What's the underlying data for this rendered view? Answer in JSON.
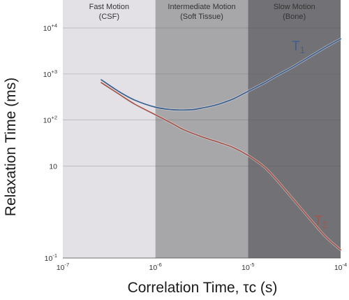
{
  "chart_data": {
    "type": "line",
    "xlabel": "Correlation Time, τc (s)",
    "ylabel": "Relaxation Time (ms)",
    "x_scale": "log",
    "y_scale": "log",
    "xlim": [
      1e-07,
      0.0001
    ],
    "ylim": [
      0.1,
      10000.0
    ],
    "grid": true,
    "x_ticks": [
      {
        "value": 1e-07,
        "base": "10",
        "exp": "-7"
      },
      {
        "value": 1e-06,
        "base": "10",
        "exp": "-6"
      },
      {
        "value": 1e-05,
        "base": "10",
        "exp": "-5"
      },
      {
        "value": 0.0001,
        "base": "10",
        "exp": "-4"
      }
    ],
    "y_ticks": [
      {
        "value": 0.1,
        "base": "10",
        "exp": "-1"
      },
      {
        "value": 10,
        "base": "10",
        "exp": ""
      },
      {
        "value": 100,
        "base": "10",
        "exp": "+2"
      },
      {
        "value": 1000,
        "base": "10",
        "exp": "+3"
      },
      {
        "value": 10000,
        "base": "10",
        "exp": "+4"
      }
    ],
    "regions": [
      {
        "x_start": 1e-07,
        "x_end": 1e-06,
        "label_line1": "Fast Motion",
        "label_line2": "(CSF)",
        "color": "#e3e1e6"
      },
      {
        "x_start": 1e-06,
        "x_end": 1e-05,
        "label_line1": "Intermediate Motion",
        "label_line2": "(Soft Tissue)",
        "color": "#a7a7a9"
      },
      {
        "x_start": 1e-05,
        "x_end": 0.0001,
        "label_line1": "Slow Motion",
        "label_line2": "(Bone)",
        "color": "#727276"
      }
    ],
    "series": [
      {
        "name": "T1",
        "label_main": "T",
        "label_sub": "1",
        "color": "#3e5f8e",
        "x": [
          2.6e-07,
          4e-07,
          6e-07,
          1e-06,
          1.5e-06,
          2e-06,
          2.5e-06,
          3e-06,
          4e-06,
          5e-06,
          7e-06,
          1e-05,
          1.5e-05,
          2e-05,
          3e-05,
          5e-05,
          7e-05,
          0.0001
        ],
        "y": [
          750,
          420,
          270,
          190,
          168,
          165,
          168,
          178,
          200,
          226,
          290,
          420,
          640,
          900,
          1400,
          2600,
          3900,
          5800
        ]
      },
      {
        "name": "T2",
        "label_main": "T",
        "label_sub": "2",
        "color": "#a65448",
        "x": [
          2.6e-07,
          4e-07,
          6e-07,
          1e-06,
          1.5e-06,
          2e-06,
          3e-06,
          4e-06,
          5e-06,
          7e-06,
          1e-05,
          1.5e-05,
          2e-05,
          3e-05,
          5e-05,
          7e-05,
          0.0001
        ],
        "y": [
          650,
          370,
          220,
          130,
          85,
          62,
          45,
          37,
          32,
          25,
          17,
          9.5,
          5.2,
          2.0,
          0.6,
          0.28,
          0.15
        ]
      }
    ]
  }
}
